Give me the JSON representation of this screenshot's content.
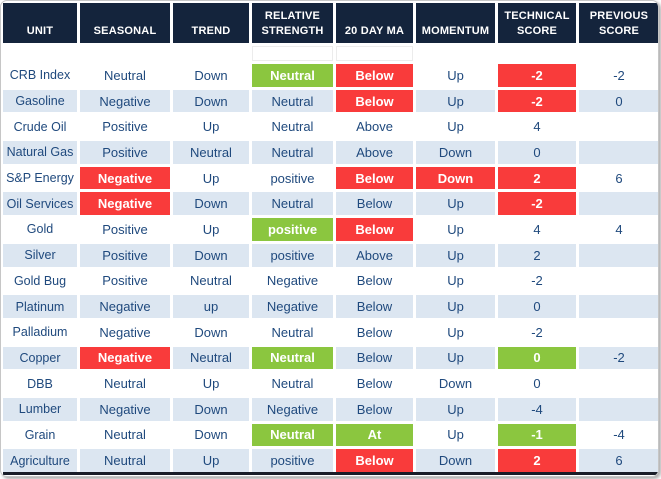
{
  "table": {
    "columns": [
      "UNIT",
      "SEASONAL",
      "TREND",
      "RELATIVE STRENGTH",
      "20 DAY MA",
      "MOMENTUM",
      "TECHNICAL SCORE",
      "PREVIOUS SCORE"
    ],
    "column_keys": [
      "unit",
      "seasonal",
      "trend",
      "relative-strength",
      "20-day-ma",
      "momentum",
      "technical-score",
      "previous-score"
    ],
    "rows": [
      {
        "cells": [
          [
            "CRB Index"
          ],
          [
            "Neutral"
          ],
          [
            "Down"
          ],
          [
            "Neutral",
            "g"
          ],
          [
            "Below",
            "r"
          ],
          [
            "Up"
          ],
          [
            "-2",
            "r"
          ],
          [
            "-2"
          ]
        ]
      },
      {
        "cells": [
          [
            "Gasoline"
          ],
          [
            "Negative"
          ],
          [
            "Down"
          ],
          [
            "Neutral"
          ],
          [
            "Below",
            "r"
          ],
          [
            "Up"
          ],
          [
            "-2",
            "r"
          ],
          [
            "0"
          ]
        ]
      },
      {
        "cells": [
          [
            "Crude Oil"
          ],
          [
            "Positive"
          ],
          [
            "Up"
          ],
          [
            "Neutral"
          ],
          [
            "Above"
          ],
          [
            "Up"
          ],
          [
            "4"
          ],
          [
            ""
          ]
        ]
      },
      {
        "cells": [
          [
            "Natural Gas"
          ],
          [
            "Positive"
          ],
          [
            "Neutral"
          ],
          [
            "Neutral"
          ],
          [
            "Above"
          ],
          [
            "Down"
          ],
          [
            "0"
          ],
          [
            ""
          ]
        ]
      },
      {
        "cells": [
          [
            "S&P Energy"
          ],
          [
            "Negative",
            "r"
          ],
          [
            "Up"
          ],
          [
            "positive"
          ],
          [
            "Below",
            "r"
          ],
          [
            "Down",
            "r"
          ],
          [
            "2",
            "r"
          ],
          [
            "6"
          ]
        ]
      },
      {
        "cells": [
          [
            "Oil Services"
          ],
          [
            "Negative",
            "r"
          ],
          [
            "Down"
          ],
          [
            "Neutral"
          ],
          [
            "Below"
          ],
          [
            "Up"
          ],
          [
            "-2",
            "r"
          ],
          [
            ""
          ]
        ]
      },
      {
        "cells": [
          [
            "Gold"
          ],
          [
            "Positive"
          ],
          [
            "Up"
          ],
          [
            "positive",
            "g"
          ],
          [
            "Below",
            "r"
          ],
          [
            "Up"
          ],
          [
            "4"
          ],
          [
            "4"
          ]
        ]
      },
      {
        "cells": [
          [
            "Silver"
          ],
          [
            "Positive"
          ],
          [
            "Down"
          ],
          [
            "positive"
          ],
          [
            "Above"
          ],
          [
            "Up"
          ],
          [
            "2"
          ],
          [
            ""
          ]
        ]
      },
      {
        "cells": [
          [
            "Gold Bug"
          ],
          [
            "Positive"
          ],
          [
            "Neutral"
          ],
          [
            "Negative"
          ],
          [
            "Below"
          ],
          [
            "Up"
          ],
          [
            "-2"
          ],
          [
            ""
          ]
        ]
      },
      {
        "cells": [
          [
            "Platinum"
          ],
          [
            "Negative"
          ],
          [
            "up"
          ],
          [
            "Negative"
          ],
          [
            "Below"
          ],
          [
            "Up"
          ],
          [
            "0"
          ],
          [
            ""
          ]
        ]
      },
      {
        "cells": [
          [
            "Palladium"
          ],
          [
            "Negative"
          ],
          [
            "Down"
          ],
          [
            "Neutral"
          ],
          [
            "Below"
          ],
          [
            "Up"
          ],
          [
            "-2"
          ],
          [
            ""
          ]
        ]
      },
      {
        "cells": [
          [
            "Copper"
          ],
          [
            "Negative",
            "r"
          ],
          [
            "Neutral"
          ],
          [
            "Neutral",
            "g"
          ],
          [
            "Below"
          ],
          [
            "Up"
          ],
          [
            "0",
            "g"
          ],
          [
            "-2"
          ]
        ]
      },
      {
        "cells": [
          [
            "DBB"
          ],
          [
            "Neutral"
          ],
          [
            "Up"
          ],
          [
            "Neutral"
          ],
          [
            "Below"
          ],
          [
            "Down"
          ],
          [
            "0"
          ],
          [
            ""
          ]
        ]
      },
      {
        "cells": [
          [
            "Lumber"
          ],
          [
            "Negative"
          ],
          [
            "Down"
          ],
          [
            "Negative"
          ],
          [
            "Below"
          ],
          [
            "Up"
          ],
          [
            "-4"
          ],
          [
            ""
          ]
        ]
      },
      {
        "cells": [
          [
            "Grain"
          ],
          [
            "Neutral"
          ],
          [
            "Down"
          ],
          [
            "Neutral",
            "g"
          ],
          [
            "At",
            "g"
          ],
          [
            "Up"
          ],
          [
            "-1",
            "g"
          ],
          [
            "-4"
          ]
        ]
      },
      {
        "cells": [
          [
            "Agriculture"
          ],
          [
            "Neutral"
          ],
          [
            "Up"
          ],
          [
            "positive"
          ],
          [
            "Below",
            "r"
          ],
          [
            "Down"
          ],
          [
            "2",
            "r"
          ],
          [
            "6"
          ]
        ]
      }
    ]
  },
  "colors": {
    "header_bg": "#14243C",
    "red": "#F93B3B",
    "green": "#8BC63F",
    "stripe": "#DCE6F1",
    "text_navy": "#1F497D",
    "bottom_border": "#191D28"
  }
}
